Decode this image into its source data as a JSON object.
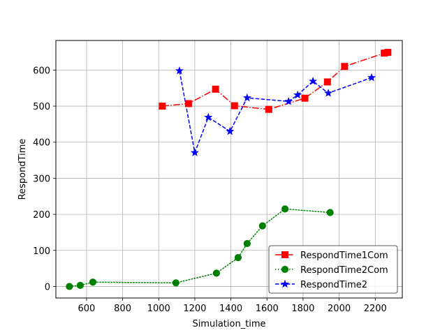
{
  "chart_data": {
    "type": "line",
    "xlabel": "Simulation_time",
    "ylabel": "RespondTime",
    "xlim": [
      430,
      2350
    ],
    "ylim": [
      -32,
      682
    ],
    "xticks": [
      600,
      800,
      1000,
      1200,
      1400,
      1600,
      1800,
      2000,
      2200
    ],
    "yticks": [
      0,
      100,
      200,
      300,
      400,
      500,
      600
    ],
    "grid": true,
    "legend_position": "lower-right",
    "series": [
      {
        "name": "RespondTime1Com",
        "color": "#ff0000",
        "marker": "square",
        "linestyle": "dashdot",
        "x": [
          1020,
          1165,
          1315,
          1420,
          1610,
          1810,
          1935,
          2030,
          2250,
          2270
        ],
        "y": [
          500,
          507,
          547,
          501,
          491,
          522,
          567,
          610,
          647,
          649
        ]
      },
      {
        "name": "RespondTime2Com",
        "color": "#008000",
        "marker": "circle",
        "linestyle": "dotted",
        "x": [
          505,
          565,
          635,
          1095,
          1320,
          1440,
          1490,
          1575,
          1700,
          1950
        ],
        "y": [
          0,
          3,
          12,
          10,
          37,
          80,
          119,
          168,
          215,
          205
        ]
      },
      {
        "name": "RespondTime2",
        "color": "#0000ff",
        "marker": "star",
        "linestyle": "dashed",
        "x": [
          1115,
          1200,
          1275,
          1395,
          1490,
          1720,
          1770,
          1855,
          1940,
          2180
        ],
        "y": [
          598,
          371,
          469,
          430,
          523,
          513,
          531,
          569,
          536,
          579
        ]
      }
    ]
  }
}
